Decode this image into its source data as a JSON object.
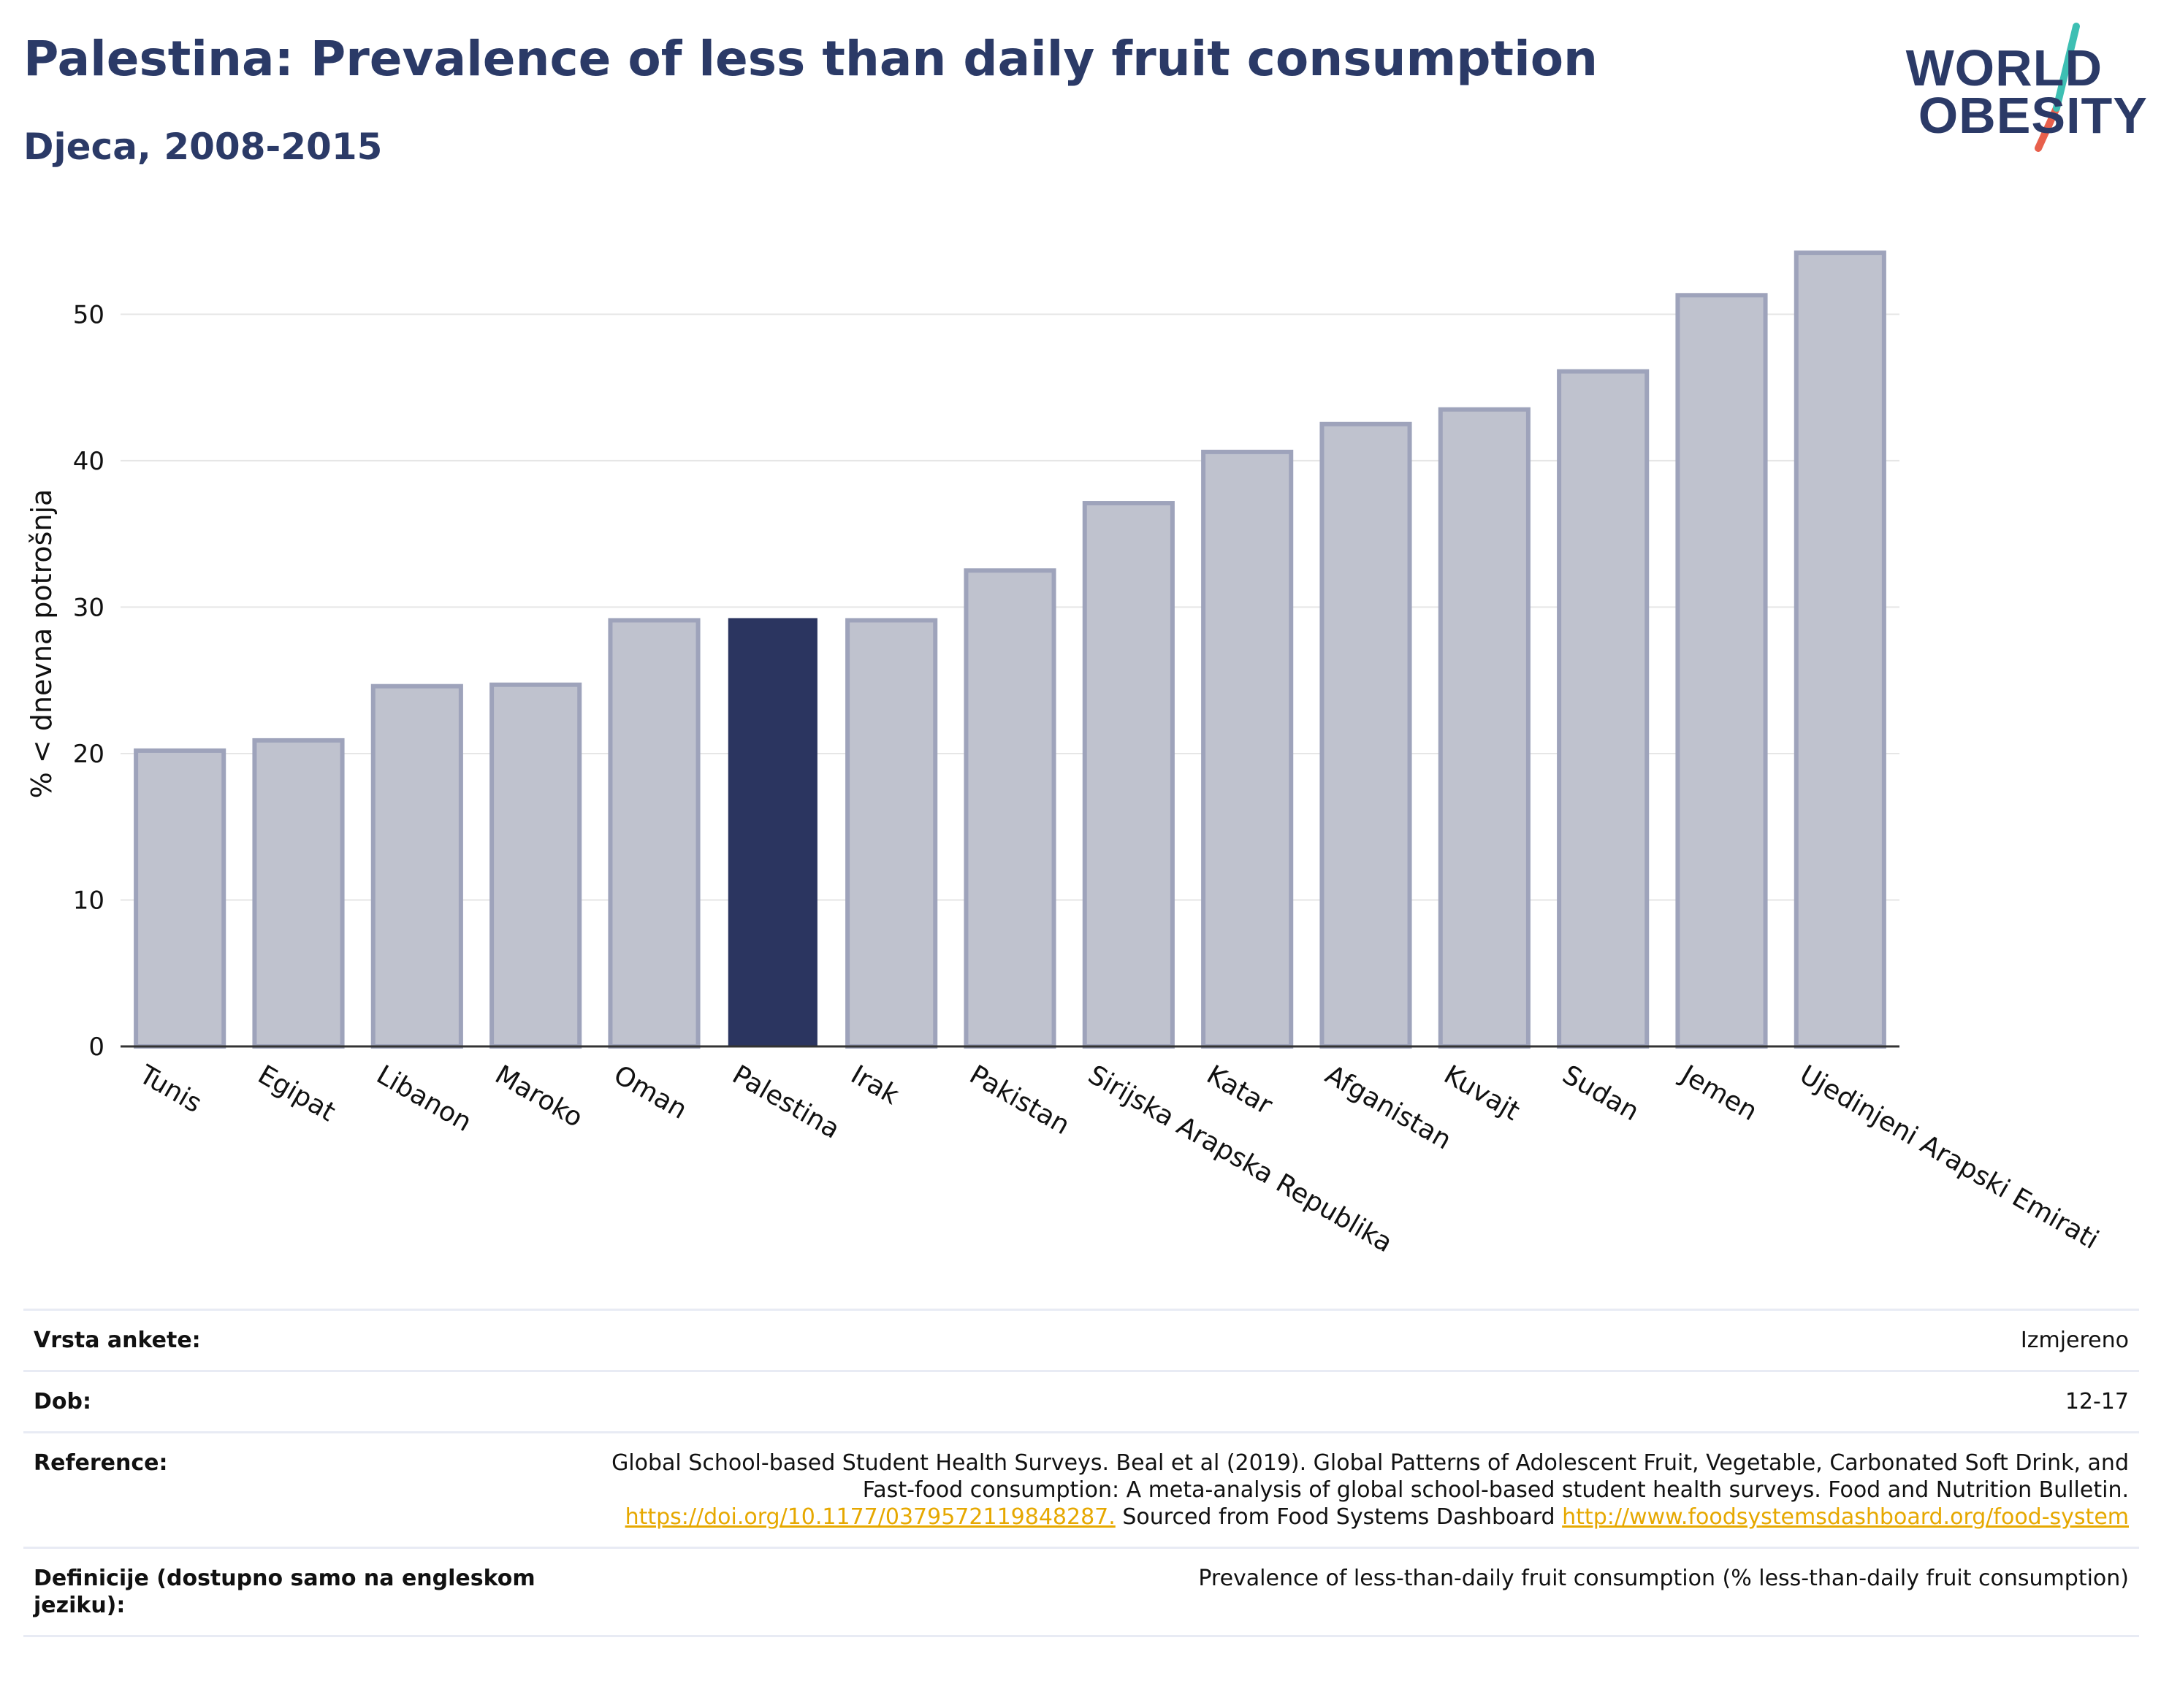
{
  "header": {
    "title": "Palestina: Prevalence of less than daily fruit consumption",
    "subtitle": "Djeca, 2008-2015"
  },
  "logo": {
    "line1": "WORLD",
    "line2": "OBESITY"
  },
  "colors": {
    "title": "#2b3a67",
    "bar_default": "#bfc2ce",
    "bar_default_border": "#9ea3bb",
    "bar_highlight": "#2b3560",
    "link": "#e6a800",
    "logo_teal": "#3dbfb3",
    "logo_red": "#e8604c"
  },
  "chart_data": {
    "type": "bar",
    "categories": [
      "Tunis",
      "Egipat",
      "Libanon",
      "Maroko",
      "Oman",
      "Palestina",
      "Irak",
      "Pakistan",
      "Sirijska Arapska Republika",
      "Katar",
      "Afganistan",
      "Kuvajt",
      "Sudan",
      "Jemen",
      "Ujedinjeni Arapski Emirati"
    ],
    "values": [
      20.2,
      20.9,
      24.6,
      24.7,
      29.1,
      29.2,
      29.1,
      32.5,
      37.1,
      40.6,
      42.5,
      43.5,
      46.1,
      51.3,
      54.2
    ],
    "highlight": "Palestina",
    "title": "",
    "xlabel": "",
    "ylabel": "% < dnevna potrošnja",
    "ylim": [
      0,
      57
    ],
    "yticks": [
      0,
      10,
      20,
      30,
      40,
      50
    ],
    "grid": true,
    "legend": "none"
  },
  "info": {
    "survey_label": "Vrsta ankete:",
    "survey_value": "Izmjereno",
    "age_label": "Dob:",
    "age_value": "12-17",
    "reference_label": "Reference:",
    "reference_text_1": "Global School-based Student Health Surveys. Beal et al (2019). Global Patterns of Adolescent Fruit, Vegetable, Carbonated Soft Drink, and Fast-food consumption: A meta-analysis of global school-based student health surveys. Food and Nutrition Bulletin.",
    "reference_link_1": "https://doi.org/10.1177/0379572119848287.",
    "reference_text_2": "Sourced from Food Systems Dashboard",
    "reference_link_2": "http://www.foodsystemsdashboard.org/food-system",
    "definition_label": "Definicije (dostupno samo na engleskom jeziku):",
    "definition_value": "Prevalence of less-than-daily fruit consumption (% less-than-daily fruit consumption)"
  }
}
